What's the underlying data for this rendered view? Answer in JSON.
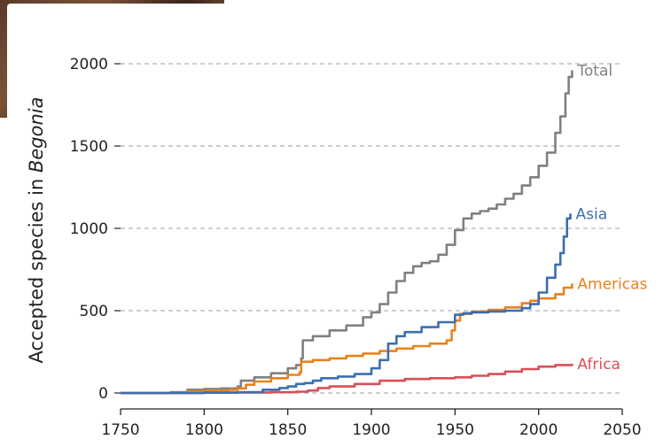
{
  "chart_data": {
    "type": "line",
    "title": "",
    "xlabel": "",
    "ylabel": "Accepted species in ",
    "ylabel_italic": "Begonia",
    "xlim": [
      1750,
      2050
    ],
    "ylim": [
      -50,
      2080
    ],
    "xticks": [
      1750,
      1800,
      1850,
      1900,
      1950,
      2000,
      2050
    ],
    "yticks": [
      0,
      500,
      1000,
      1500,
      2000
    ],
    "grid": "horizontal-dashed",
    "series": [
      {
        "name": "Total",
        "color": "#808080",
        "points": [
          [
            1750,
            0
          ],
          [
            1780,
            5
          ],
          [
            1790,
            20
          ],
          [
            1800,
            25
          ],
          [
            1810,
            28
          ],
          [
            1820,
            40
          ],
          [
            1822,
            75
          ],
          [
            1830,
            95
          ],
          [
            1840,
            120
          ],
          [
            1850,
            150
          ],
          [
            1855,
            170
          ],
          [
            1858,
            210
          ],
          [
            1859,
            320
          ],
          [
            1865,
            345
          ],
          [
            1875,
            380
          ],
          [
            1885,
            410
          ],
          [
            1895,
            460
          ],
          [
            1900,
            490
          ],
          [
            1905,
            540
          ],
          [
            1910,
            610
          ],
          [
            1915,
            680
          ],
          [
            1920,
            730
          ],
          [
            1925,
            770
          ],
          [
            1930,
            790
          ],
          [
            1935,
            800
          ],
          [
            1940,
            840
          ],
          [
            1945,
            900
          ],
          [
            1950,
            990
          ],
          [
            1955,
            1060
          ],
          [
            1960,
            1090
          ],
          [
            1965,
            1105
          ],
          [
            1970,
            1120
          ],
          [
            1975,
            1145
          ],
          [
            1980,
            1180
          ],
          [
            1985,
            1210
          ],
          [
            1990,
            1260
          ],
          [
            1995,
            1310
          ],
          [
            2000,
            1380
          ],
          [
            2005,
            1460
          ],
          [
            2010,
            1580
          ],
          [
            2013,
            1680
          ],
          [
            2016,
            1820
          ],
          [
            2018,
            1920
          ],
          [
            2020,
            1960
          ]
        ]
      },
      {
        "name": "Asia",
        "color": "#3a6fb0",
        "points": [
          [
            1750,
            0
          ],
          [
            1800,
            2
          ],
          [
            1820,
            5
          ],
          [
            1835,
            20
          ],
          [
            1845,
            30
          ],
          [
            1850,
            40
          ],
          [
            1855,
            55
          ],
          [
            1860,
            60
          ],
          [
            1865,
            75
          ],
          [
            1870,
            90
          ],
          [
            1880,
            100
          ],
          [
            1890,
            115
          ],
          [
            1900,
            150
          ],
          [
            1905,
            200
          ],
          [
            1910,
            300
          ],
          [
            1915,
            345
          ],
          [
            1920,
            370
          ],
          [
            1930,
            400
          ],
          [
            1940,
            430
          ],
          [
            1950,
            475
          ],
          [
            1955,
            485
          ],
          [
            1960,
            490
          ],
          [
            1970,
            495
          ],
          [
            1980,
            500
          ],
          [
            1990,
            515
          ],
          [
            1995,
            540
          ],
          [
            2000,
            610
          ],
          [
            2005,
            700
          ],
          [
            2010,
            780
          ],
          [
            2013,
            850
          ],
          [
            2015,
            950
          ],
          [
            2017,
            1060
          ],
          [
            2019,
            1090
          ]
        ]
      },
      {
        "name": "Americas",
        "color": "#e8821e",
        "points": [
          [
            1750,
            0
          ],
          [
            1790,
            10
          ],
          [
            1800,
            15
          ],
          [
            1815,
            20
          ],
          [
            1820,
            28
          ],
          [
            1825,
            50
          ],
          [
            1830,
            70
          ],
          [
            1840,
            90
          ],
          [
            1850,
            110
          ],
          [
            1857,
            125
          ],
          [
            1858,
            190
          ],
          [
            1865,
            200
          ],
          [
            1875,
            210
          ],
          [
            1885,
            225
          ],
          [
            1895,
            240
          ],
          [
            1905,
            255
          ],
          [
            1915,
            270
          ],
          [
            1925,
            285
          ],
          [
            1935,
            300
          ],
          [
            1945,
            320
          ],
          [
            1948,
            380
          ],
          [
            1950,
            440
          ],
          [
            1953,
            480
          ],
          [
            1960,
            495
          ],
          [
            1970,
            505
          ],
          [
            1980,
            520
          ],
          [
            1990,
            545
          ],
          [
            1995,
            560
          ],
          [
            2000,
            575
          ],
          [
            2010,
            600
          ],
          [
            2015,
            640
          ],
          [
            2020,
            665
          ]
        ]
      },
      {
        "name": "Africa",
        "color": "#d94f55",
        "points": [
          [
            1750,
            0
          ],
          [
            1800,
            2
          ],
          [
            1820,
            3
          ],
          [
            1840,
            5
          ],
          [
            1855,
            8
          ],
          [
            1862,
            15
          ],
          [
            1868,
            30
          ],
          [
            1875,
            40
          ],
          [
            1890,
            55
          ],
          [
            1905,
            75
          ],
          [
            1920,
            85
          ],
          [
            1935,
            90
          ],
          [
            1950,
            95
          ],
          [
            1960,
            105
          ],
          [
            1970,
            115
          ],
          [
            1980,
            130
          ],
          [
            1990,
            145
          ],
          [
            2000,
            160
          ],
          [
            2010,
            170
          ],
          [
            2020,
            178
          ]
        ]
      }
    ]
  }
}
